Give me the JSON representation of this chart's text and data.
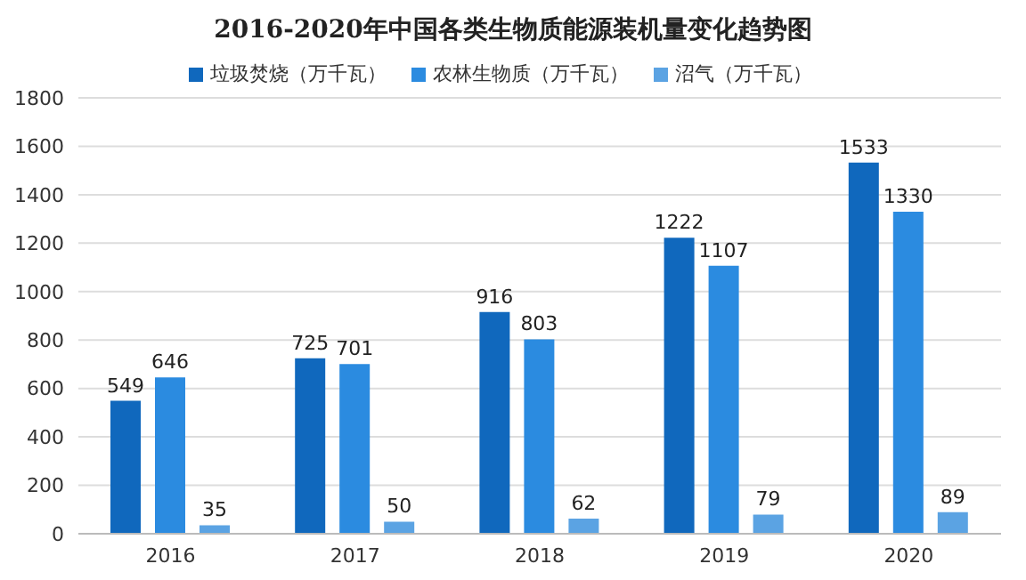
{
  "chart_data": {
    "type": "bar",
    "title": "2016-2020年中国各类生物质能源装机量变化趋势图",
    "categories": [
      "2016",
      "2017",
      "2018",
      "2019",
      "2020"
    ],
    "series": [
      {
        "name": "垃圾焚烧（万千瓦）",
        "color": "#1068bd",
        "values": [
          549,
          725,
          916,
          1222,
          1533
        ]
      },
      {
        "name": "农林生物质（万千瓦）",
        "color": "#2b8be0",
        "values": [
          646,
          701,
          803,
          1107,
          1330
        ]
      },
      {
        "name": "沼气（万千瓦）",
        "color": "#5ba3e3",
        "values": [
          35,
          50,
          62,
          79,
          89
        ]
      }
    ],
    "ylim": [
      0,
      1800
    ],
    "yticks": [
      0,
      200,
      400,
      600,
      800,
      1000,
      1200,
      1400,
      1600,
      1800
    ],
    "grid": "y",
    "legend": "top",
    "data_labels": true
  }
}
